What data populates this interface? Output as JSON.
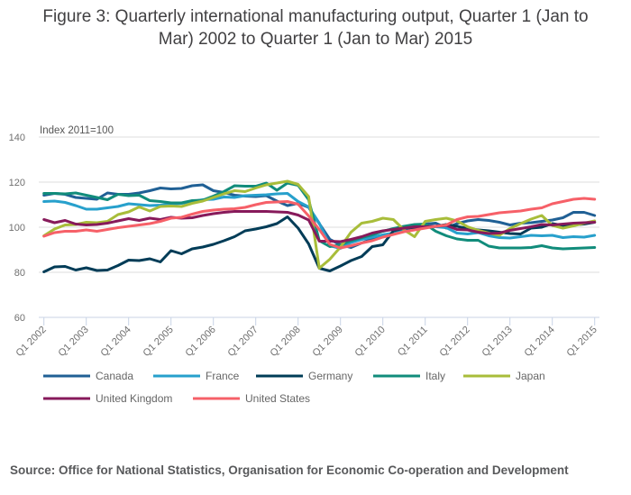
{
  "chart_data": {
    "type": "line",
    "title": "Figure 3: Quarterly international manufacturing output, Quarter 1 (Jan to Mar) 2002 to Quarter 1 (Jan to Mar) 2015",
    "title_lines": [
      "Figure 3: Quarterly international manufacturing output, Quarter 1 (Jan to",
      "Mar) 2002 to Quarter 1 (Jan to Mar) 2015"
    ],
    "ylabel": "Index 2011=100",
    "xlabel": "",
    "ylim": [
      60,
      140
    ],
    "yticks": [
      60,
      80,
      100,
      120,
      140
    ],
    "grid": true,
    "legend_position": "bottom",
    "x_start": "Q1 2002",
    "x_end": "Q1 2015",
    "frequency": "quarterly",
    "xtick_labels": [
      "Q1 2002",
      "Q1 2003",
      "Q1 2004",
      "Q1 2005",
      "Q1 2006",
      "Q1 2007",
      "Q1 2008",
      "Q1 2009",
      "Q1 2010",
      "Q1 2011",
      "Q1 2012",
      "Q1 2013",
      "Q1 2014",
      "Q1 2015"
    ],
    "series": [
      {
        "name": "Canada",
        "color": "#206095",
        "values": [
          114.2,
          115.0,
          114.8,
          114.6,
          113.2,
          112.8,
          112.4,
          112.6,
          115.2,
          114.6,
          114.6,
          115.2,
          116.0,
          116.2,
          117.4,
          117.0,
          117.2,
          117.8,
          118.4,
          118.8,
          116.2,
          115.4,
          114.0,
          114.2,
          113.8,
          113.6,
          114.0,
          113.2,
          111.6,
          109.6,
          110.6,
          108.8,
          107.4,
          101.6,
          94.6,
          92.2,
          91.0,
          91.6,
          93.0,
          94.8,
          96.6,
          97.2,
          98.2,
          99.0,
          100.2,
          101.4,
          101.8,
          100.4,
          99.6,
          101.6,
          102.8,
          103.4,
          102.6,
          103.0,
          102.2,
          101.0,
          101.8,
          101.8,
          102.0,
          102.6,
          103.2,
          104.2,
          105.6,
          106.6,
          106.6,
          105.2
        ]
      },
      {
        "name": "France",
        "color": "#27a0cc",
        "values": [
          111.4,
          111.6,
          111.0,
          109.8,
          109.6,
          108.0,
          108.0,
          108.6,
          109.2,
          110.0,
          110.4,
          110.0,
          109.6,
          109.8,
          110.2,
          110.4,
          110.6,
          111.4,
          112.2,
          112.4,
          113.4,
          113.2,
          113.6,
          114.0,
          114.2,
          114.4,
          114.8,
          115.0,
          112.8,
          111.4,
          109.0,
          101.8,
          91.8,
          90.6,
          91.6,
          93.2,
          94.6,
          95.6,
          96.6,
          97.4,
          98.6,
          99.4,
          100.0,
          100.2,
          100.2,
          99.8,
          98.4,
          97.4,
          97.0,
          97.6,
          96.2,
          95.4,
          95.2,
          96.2,
          95.8,
          96.4,
          96.2,
          96.4,
          95.4,
          95.4,
          95.8,
          95.6,
          96.4
        ]
      },
      {
        "name": "Germany",
        "color": "#003c57",
        "values": [
          80.2,
          82.4,
          82.6,
          81.0,
          82.0,
          80.8,
          81.0,
          82.8,
          83.0,
          85.4,
          85.2,
          86.0,
          84.6,
          89.6,
          88.2,
          90.4,
          91.2,
          92.4,
          94.0,
          95.8,
          98.4,
          98.0,
          99.2,
          100.2,
          101.6,
          104.6,
          99.6,
          92.6,
          81.8,
          80.6,
          82.8,
          85.2,
          87.0,
          91.4,
          92.2,
          96.6,
          98.4,
          99.6,
          99.8,
          100.2,
          100.4,
          101.2,
          100.4,
          99.4,
          98.8,
          98.4,
          97.8,
          97.2,
          97.0,
          99.4,
          99.6,
          100.0,
          101.6,
          100.8,
          101.0,
          101.4,
          102.2
        ]
      },
      {
        "name": "Italy",
        "color": "#118c7b",
        "values": [
          115.0,
          115.0,
          114.8,
          115.2,
          114.2,
          113.2,
          112.4,
          112.2,
          114.6,
          114.0,
          114.2,
          111.8,
          111.4,
          110.8,
          110.8,
          111.8,
          112.0,
          112.6,
          113.8,
          115.8,
          118.4,
          118.2,
          118.2,
          119.6,
          116.4,
          119.6,
          118.6,
          112.2,
          101.2,
          94.0,
          91.4,
          92.2,
          94.0,
          95.4,
          96.6,
          98.2,
          99.4,
          100.4,
          101.2,
          101.4,
          100.8,
          98.2,
          96.2,
          94.8,
          94.2,
          94.2,
          91.6,
          90.8,
          90.8,
          90.8,
          91.0,
          91.4,
          91.8,
          90.8,
          90.4,
          90.6,
          90.8,
          91.0
        ]
      },
      {
        "name": "Japan",
        "color": "#a8bd3a",
        "values": [
          96.2,
          99.2,
          101.0,
          101.2,
          102.2,
          102.0,
          102.6,
          105.6,
          106.8,
          108.4,
          109.0,
          107.2,
          109.2,
          109.4,
          109.2,
          110.6,
          111.6,
          113.2,
          114.8,
          116.2,
          115.8,
          117.4,
          118.8,
          119.6,
          120.4,
          119.0,
          113.6,
          103.6,
          81.8,
          85.8,
          91.2,
          97.8,
          101.8,
          102.6,
          104.0,
          103.4,
          98.8,
          95.8,
          102.6,
          103.4,
          104.0,
          102.8,
          100.2,
          98.6,
          97.4,
          96.4,
          97.2,
          99.4,
          101.6,
          103.6,
          105.2,
          100.8,
          99.6,
          100.6,
          101.8,
          102.8
        ]
      },
      {
        "name": "United Kingdom",
        "color": "#871a5b",
        "values": [
          103.4,
          102.0,
          103.0,
          101.4,
          101.0,
          101.2,
          101.8,
          102.8,
          103.8,
          104.2,
          103.0,
          104.0,
          103.4,
          104.4,
          104.0,
          104.2,
          105.2,
          106.0,
          106.6,
          107.0,
          107.0,
          107.0,
          107.0,
          106.8,
          106.6,
          105.4,
          103.2,
          98.2,
          93.8,
          93.8,
          93.6,
          94.6,
          95.8,
          97.4,
          98.4,
          99.0,
          99.6,
          100.2,
          100.2,
          100.4,
          100.8,
          99.0,
          98.8,
          97.8,
          97.2,
          97.4,
          98.4,
          98.6,
          99.4,
          100.2,
          101.2,
          101.0,
          101.4,
          101.8,
          102.0,
          102.2
        ]
      },
      {
        "name": "United States",
        "color": "#f66068",
        "values": [
          96.0,
          97.6,
          98.2,
          98.2,
          98.8,
          98.2,
          99.0,
          99.8,
          100.4,
          101.0,
          101.6,
          102.6,
          104.0,
          104.6,
          104.4,
          105.8,
          107.0,
          107.6,
          108.0,
          108.2,
          108.8,
          110.0,
          111.0,
          111.2,
          111.4,
          110.2,
          105.0,
          99.0,
          92.4,
          90.8,
          91.8,
          93.0,
          94.0,
          95.6,
          96.8,
          98.0,
          98.8,
          99.6,
          100.4,
          101.0,
          102.4,
          103.4,
          104.6,
          104.8,
          105.6,
          106.4,
          106.8,
          107.2,
          108.0,
          108.6,
          110.4,
          111.4,
          112.4,
          112.8,
          112.4
        ]
      }
    ]
  },
  "source": "Source: Office for National Statistics, Organisation for Economic Co-operation and Development"
}
